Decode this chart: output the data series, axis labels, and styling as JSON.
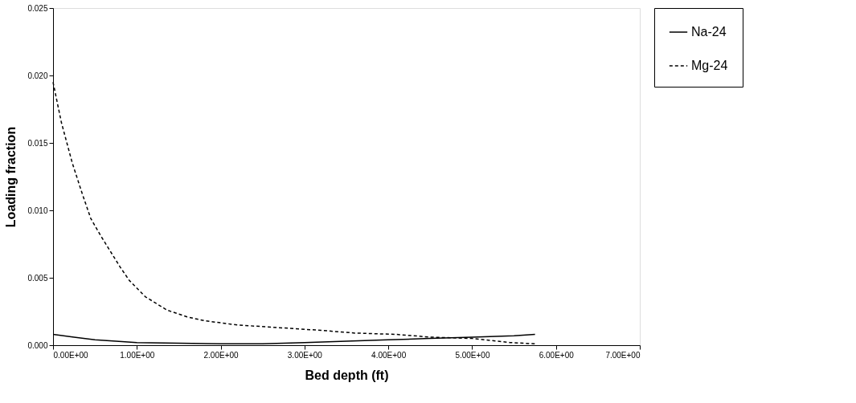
{
  "chart_data": {
    "type": "line",
    "xlabel": "Bed depth (ft)",
    "ylabel": "Loading fraction",
    "xlim": [
      0,
      7
    ],
    "ylim": [
      0,
      0.025
    ],
    "xticks": [
      {
        "value": 0,
        "label": "0.00E+00"
      },
      {
        "value": 1,
        "label": "1.00E+00"
      },
      {
        "value": 2,
        "label": "2.00E+00"
      },
      {
        "value": 3,
        "label": "3.00E+00"
      },
      {
        "value": 4,
        "label": "4.00E+00"
      },
      {
        "value": 5,
        "label": "5.00E+00"
      },
      {
        "value": 6,
        "label": "6.00E+00"
      },
      {
        "value": 7,
        "label": "7.00E+00"
      }
    ],
    "yticks": [
      {
        "value": 0,
        "label": "0.000"
      },
      0.005,
      {
        "value": 0.01,
        "label": "0.010"
      },
      0.015,
      {
        "value": 0.02,
        "label": "0.020"
      },
      0.025
    ],
    "legend": "right",
    "grid": false,
    "marker": "none",
    "series": [
      {
        "name": "Na-24",
        "color": "#000000",
        "line_style": "solid",
        "x": [
          0,
          0.25,
          0.5,
          0.75,
          1,
          1.5,
          2,
          2.5,
          3,
          3.5,
          4,
          4.5,
          5,
          5.5,
          5.75
        ],
        "values": [
          0.0008,
          0.0006,
          0.0004,
          0.0003,
          0.0002,
          0.00015,
          0.0001,
          0.0001,
          0.0002,
          0.0003,
          0.0004,
          0.0005,
          0.0006,
          0.0007,
          0.0008
        ]
      },
      {
        "name": "Mg-24",
        "color": "#000000",
        "line_style": "dashed",
        "x": [
          0,
          0.1,
          0.23,
          0.35,
          0.45,
          0.57,
          0.68,
          0.8,
          0.91,
          1.1,
          1.36,
          1.6,
          1.82,
          2.2,
          2.7,
          3.2,
          3.6,
          4.1,
          4.5,
          5,
          5.45,
          5.75
        ],
        "values": [
          0.0195,
          0.0165,
          0.0135,
          0.0112,
          0.0094,
          0.0081,
          0.007,
          0.0058,
          0.0048,
          0.0036,
          0.0026,
          0.0021,
          0.0018,
          0.0015,
          0.0013,
          0.0011,
          0.0009,
          0.0008,
          0.0006,
          0.0005,
          0.0002,
          0.0001
        ]
      }
    ]
  }
}
